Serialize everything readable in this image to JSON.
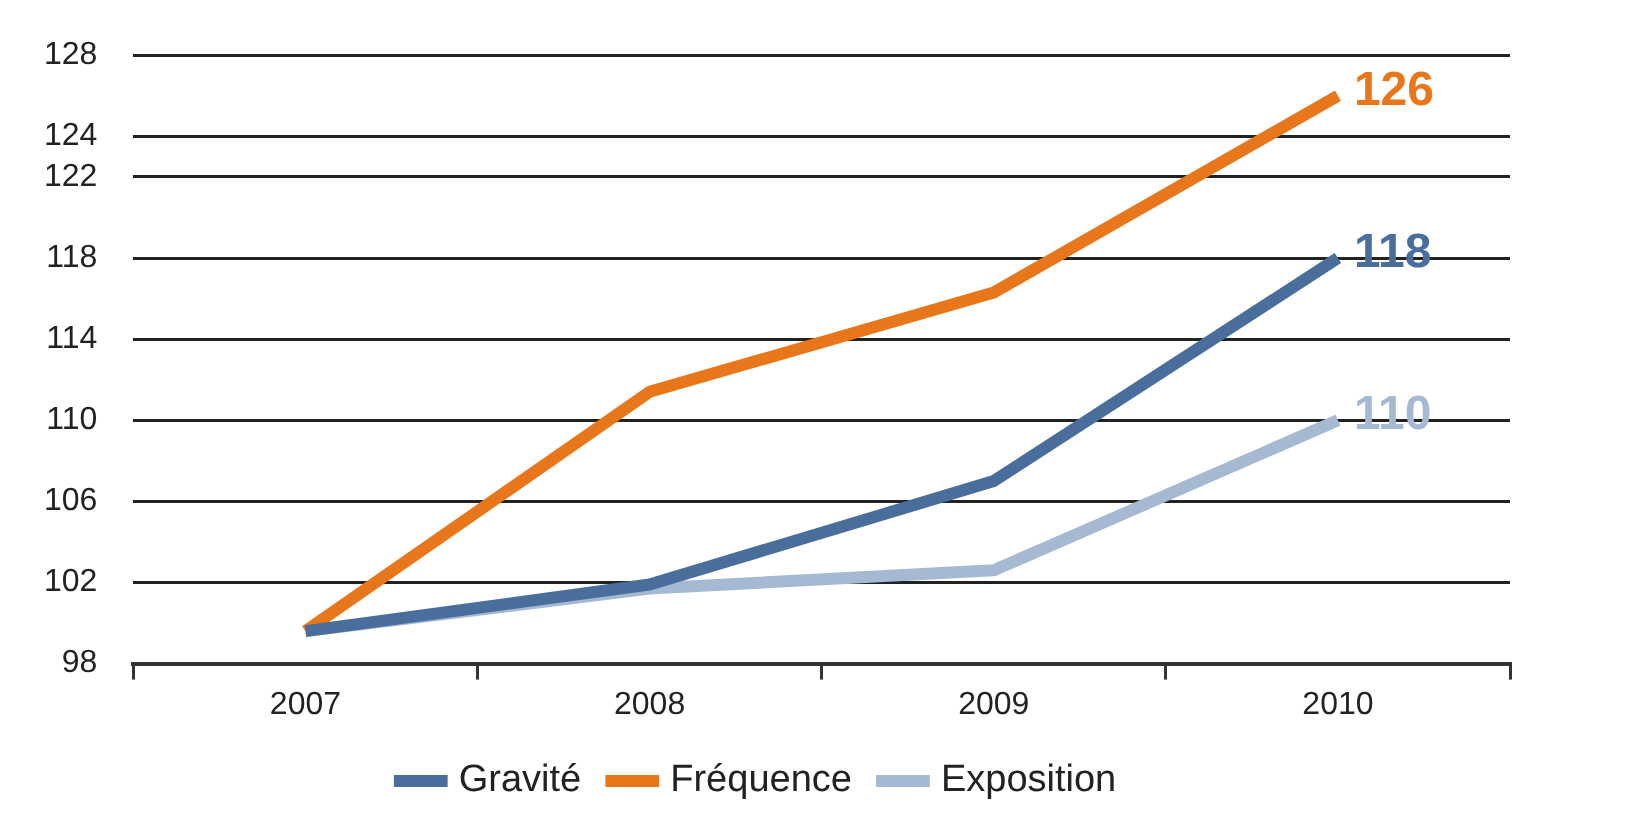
{
  "chart_data": {
    "type": "line",
    "categories": [
      "2007",
      "2008",
      "2009",
      "2010"
    ],
    "series": [
      {
        "name": "Gravité",
        "color": "#4a6e9c",
        "values": [
          99.6,
          101.9,
          107,
          118
        ],
        "value_labels": [
          null,
          null,
          null,
          "118"
        ]
      },
      {
        "name": "Fréquence",
        "color": "#e8761b",
        "values": [
          99.6,
          111.4,
          116.3,
          126
        ],
        "value_labels": [
          null,
          null,
          null,
          "126"
        ]
      },
      {
        "name": "Exposition",
        "color": "#a6b9d3",
        "values": [
          99.6,
          101.7,
          102.6,
          110
        ],
        "value_labels": [
          null,
          null,
          null,
          "110"
        ]
      }
    ],
    "ylim": [
      98,
      128
    ],
    "yticks": [
      98,
      102,
      106,
      110,
      114,
      118,
      122,
      124,
      128
    ],
    "grid": "y",
    "legend": "bottom",
    "marker": "none",
    "line_style": "solid"
  }
}
